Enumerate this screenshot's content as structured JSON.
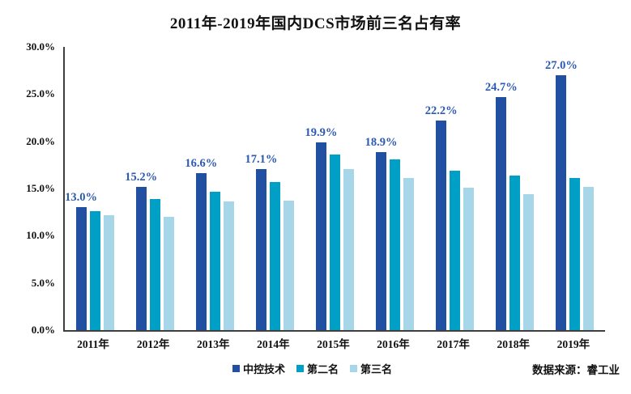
{
  "chart_data": {
    "type": "bar",
    "title": "2011年-2019年国内DCS市场前三名占有率",
    "categories": [
      "2011年",
      "2012年",
      "2013年",
      "2014年",
      "2015年",
      "2016年",
      "2017年",
      "2018年",
      "2019年"
    ],
    "series": [
      {
        "name": "中控技术",
        "color": "#2150A3",
        "values": [
          13.0,
          15.2,
          16.6,
          17.1,
          19.9,
          18.9,
          22.2,
          24.7,
          27.0
        ],
        "labels": [
          "13.0%",
          "15.2%",
          "16.6%",
          "17.1%",
          "19.9%",
          "18.9%",
          "22.2%",
          "24.7%",
          "27.0%"
        ]
      },
      {
        "name": "第二名",
        "color": "#00A0C6",
        "values": [
          12.6,
          13.9,
          14.7,
          15.7,
          18.6,
          18.1,
          16.9,
          16.4,
          16.1
        ]
      },
      {
        "name": "第三名",
        "color": "#A7D6E9",
        "values": [
          12.2,
          12.0,
          13.6,
          13.7,
          17.1,
          16.1,
          15.1,
          14.4,
          15.2
        ]
      }
    ],
    "ylim": [
      0,
      30
    ],
    "y_ticks": [
      {
        "value": 30,
        "label": "30.0%"
      },
      {
        "value": 25,
        "label": "25.0%"
      },
      {
        "value": 20,
        "label": "20.0%"
      },
      {
        "value": 15,
        "label": "15.0%"
      },
      {
        "value": 10,
        "label": "10.0%"
      },
      {
        "value": 5,
        "label": "5.0%"
      },
      {
        "value": 0,
        "label": "0.0%"
      }
    ],
    "grid": false,
    "legend_position": "bottom",
    "data_label_color": "#2C5AB2",
    "source": "数据来源：睿工业"
  }
}
